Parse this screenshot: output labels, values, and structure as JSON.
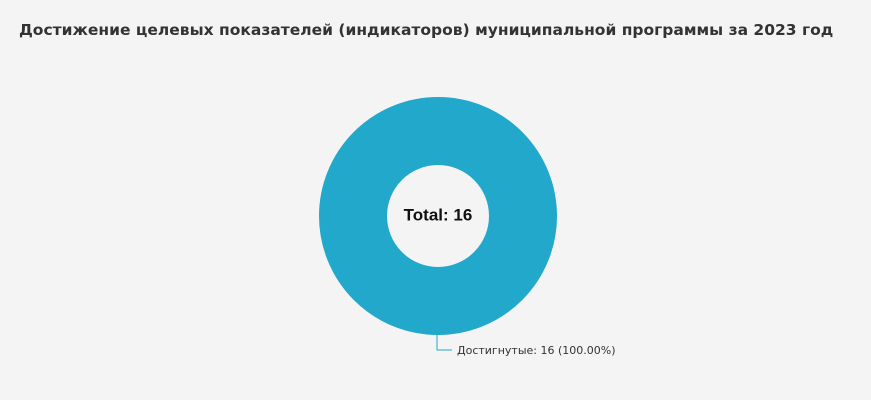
{
  "chart_data": {
    "type": "pie",
    "title": "Достижение целевых показателей (индикаторов) муниципальной программы за 2023 год",
    "center_label": "Total: 16",
    "total": 16,
    "slices": [
      {
        "name": "Достигнутые",
        "value": 16,
        "percent": "100.00%",
        "label": "Достигнутые: 16 (100.00%)",
        "color": "#21a8cb"
      }
    ],
    "donut": true,
    "legend": "none"
  },
  "colors": {
    "background": "#f4f4f4",
    "slice": "#21a8cb"
  }
}
